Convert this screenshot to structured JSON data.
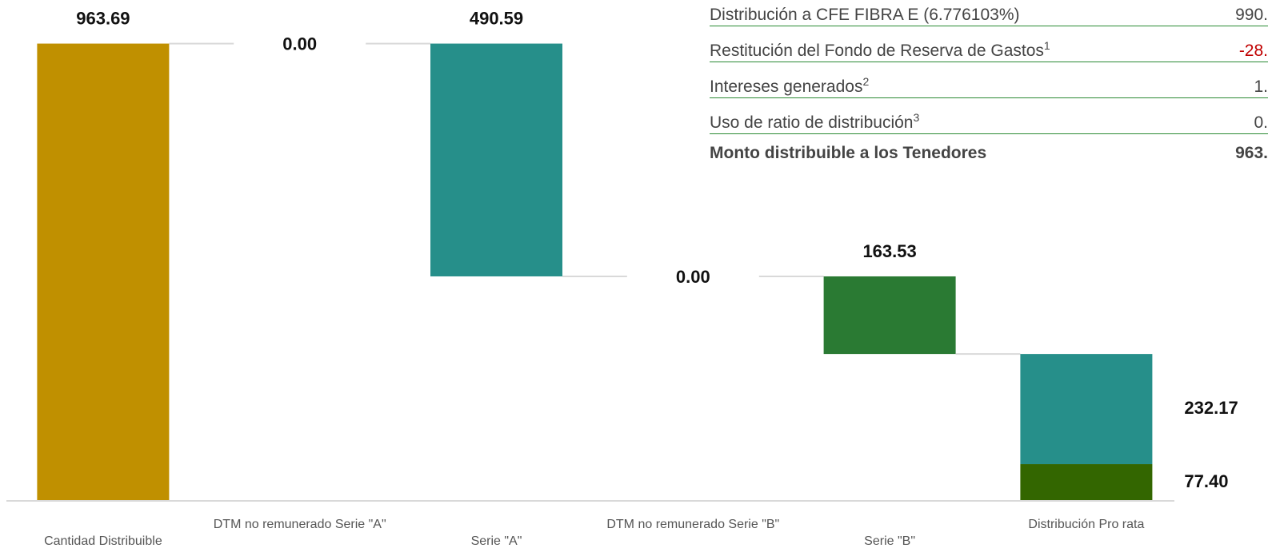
{
  "chart_data": {
    "type": "waterfall",
    "categories": [
      "Cantidad Distribuible",
      "DTM no remunerado Serie \"A\"",
      "Serie \"A\"",
      "DTM no remunerado Serie \"B\"",
      "Serie \"B\"",
      "Distribución Pro rata"
    ],
    "values": [
      963.69,
      0,
      490.59,
      0,
      163.53,
      null
    ],
    "value_labels": [
      "963.69",
      "0.00",
      "490.59",
      "0.00",
      "163.53",
      null
    ],
    "colors": [
      "#c09000",
      "#c09000",
      "#268f8a",
      "#268f8a",
      "#2a7a33",
      null
    ],
    "stacked_last": {
      "values": [
        232.17,
        77.4
      ],
      "value_labels": [
        "232.17",
        "77.40"
      ],
      "colors": [
        "#268f8a",
        "#336600"
      ]
    },
    "ylim": [
      0,
      1000
    ]
  },
  "table": {
    "rows": [
      {
        "label": "Distribución a CFE FIBRA E (6.776103%)",
        "value": "990.",
        "bold": false,
        "negative": false
      },
      {
        "label": "Restitución del Fondo de Reserva de Gastos",
        "note": "1",
        "value": "-28.",
        "bold": false,
        "negative": true
      },
      {
        "label": "Intereses generados",
        "note": "2",
        "value": "1.",
        "bold": false,
        "negative": false
      },
      {
        "label": "Uso de ratio de distribución",
        "note": "3",
        "value": "0.",
        "bold": false,
        "negative": false
      },
      {
        "label": "Monto distribuible a los Tenedores",
        "value": "963.",
        "bold": true,
        "negative": false
      }
    ]
  }
}
